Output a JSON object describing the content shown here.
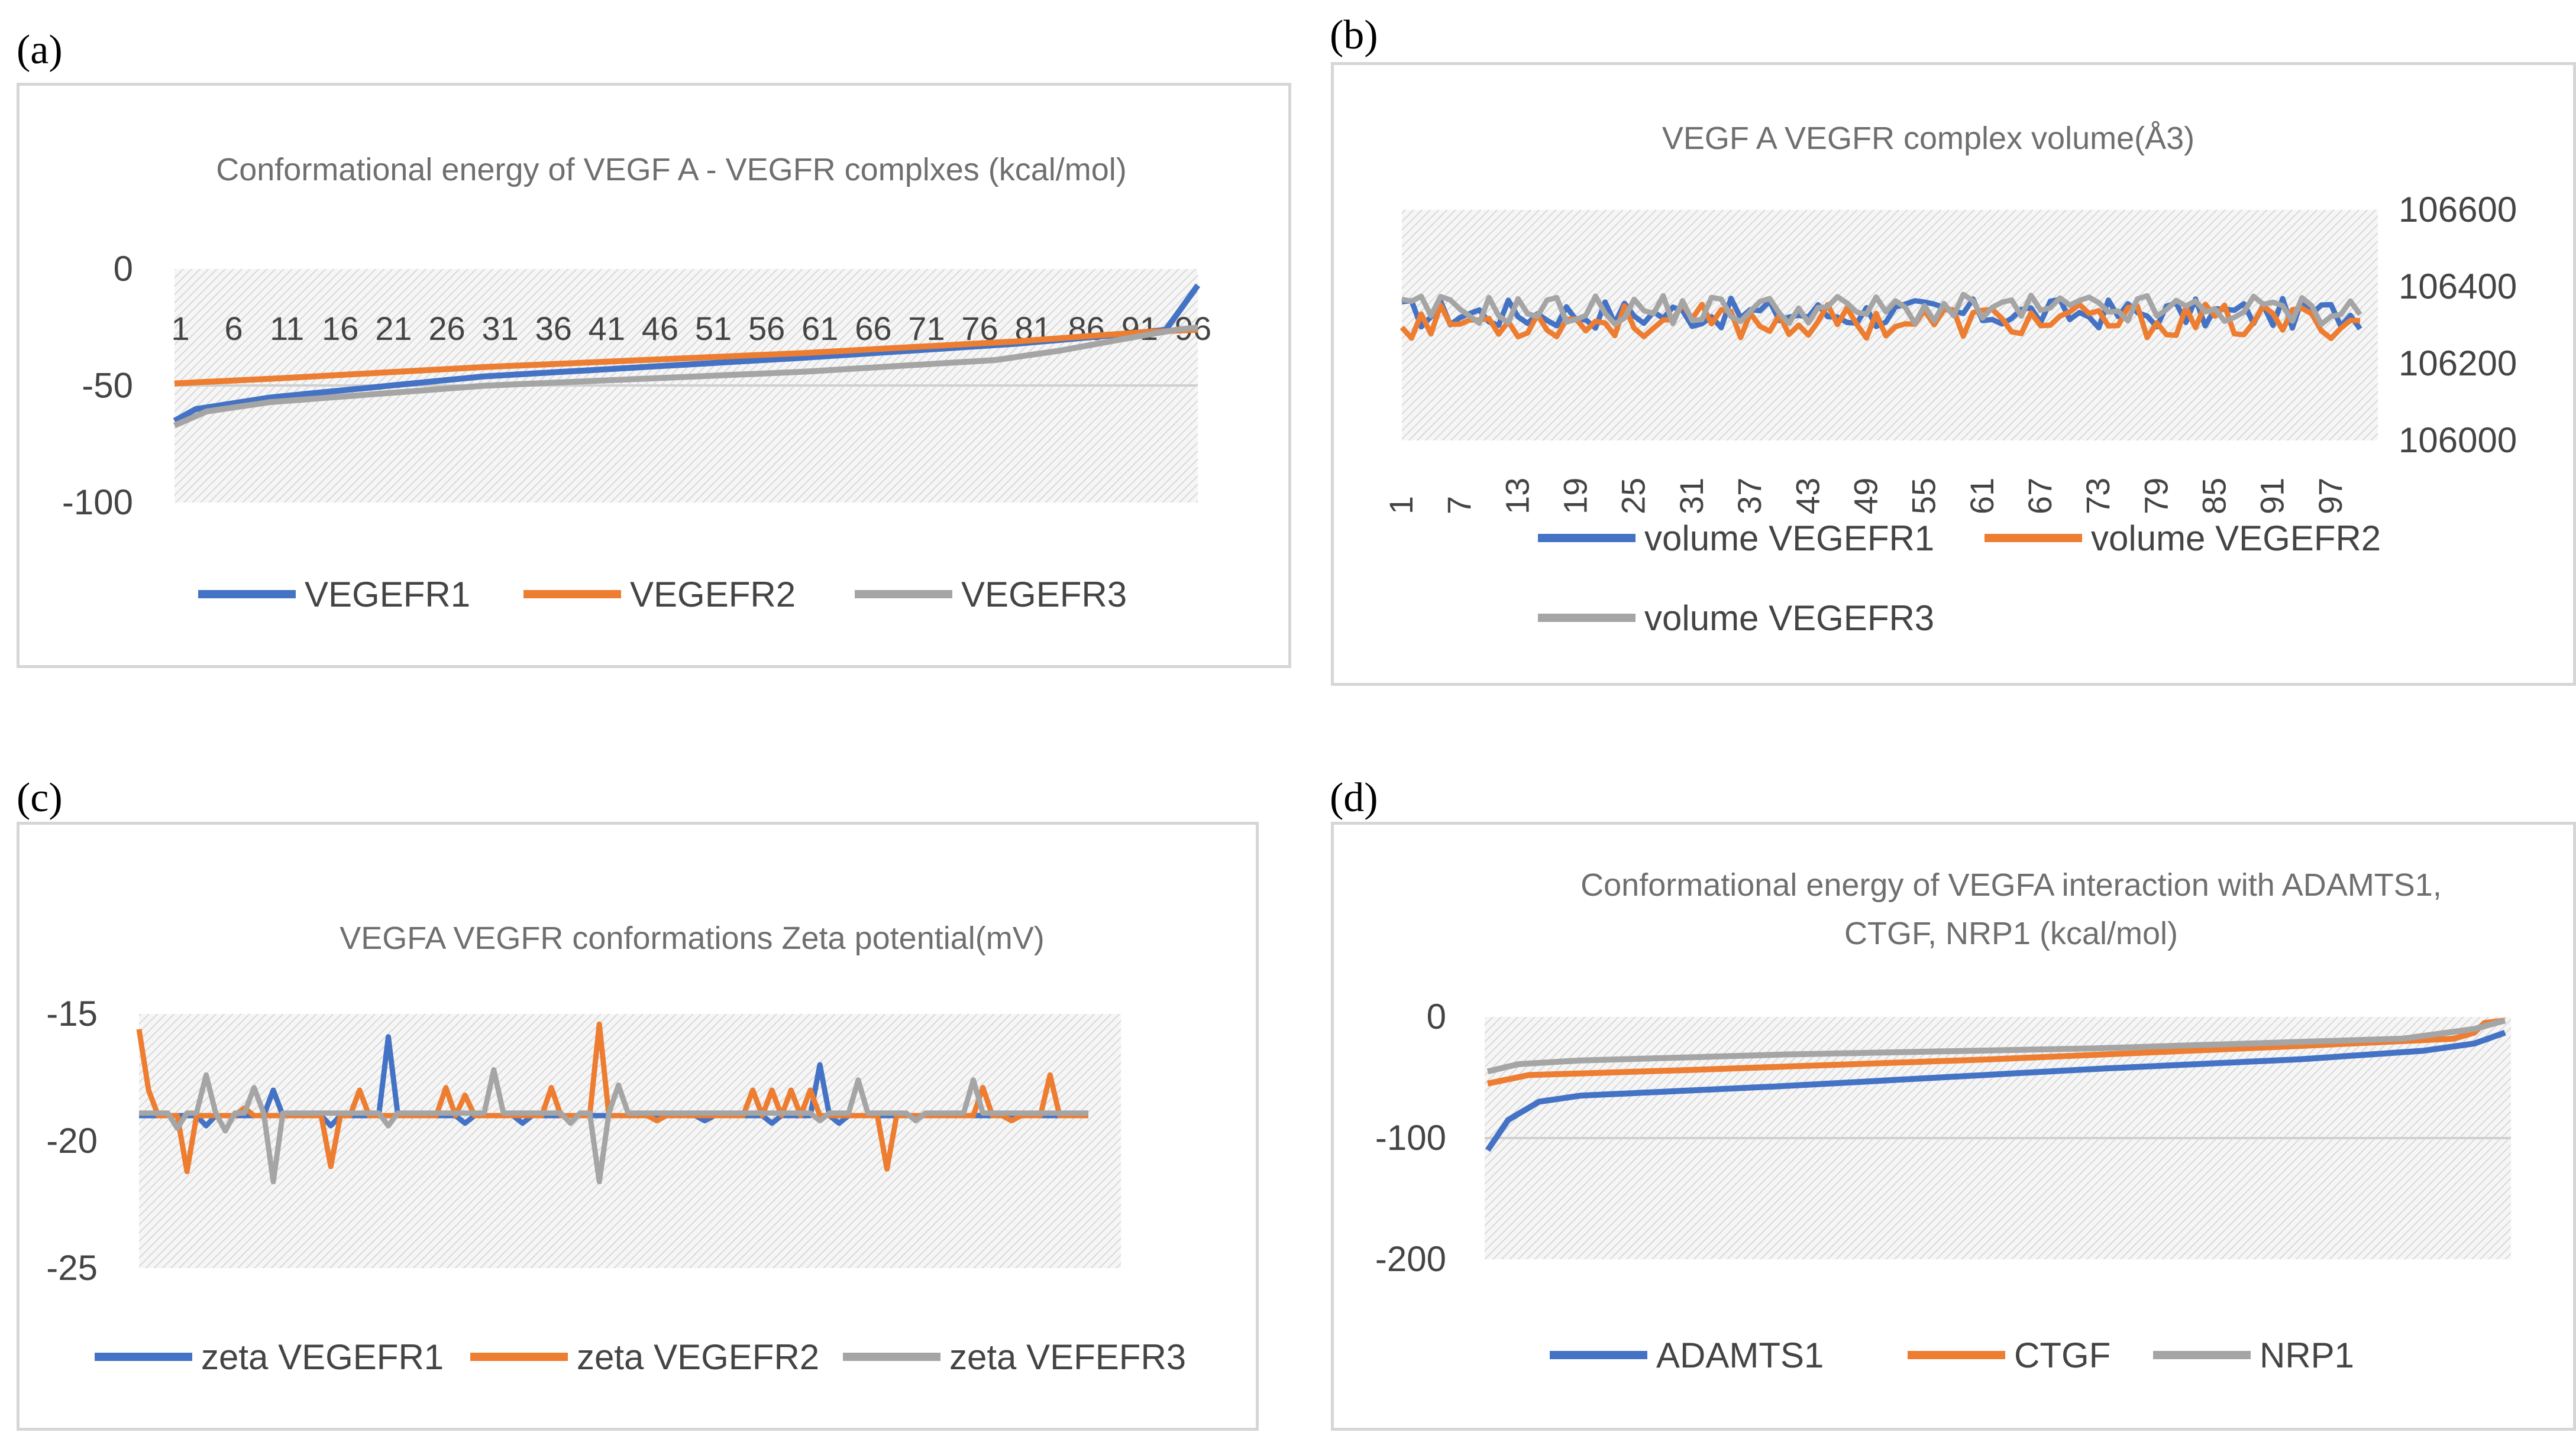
{
  "panel_labels": [
    "(a)",
    "(b)",
    "(c)",
    "(d)"
  ],
  "chart_data": [
    {
      "id": "a",
      "type": "line",
      "title": "Conformational energy of VEGF A - VEGFR complxes (kcal/mol)",
      "xlabel": "",
      "ylabel": "",
      "ylim": [
        -100,
        0
      ],
      "yticks": [
        0,
        -50,
        -100
      ],
      "xtick_labels": [
        "1",
        "6",
        "11",
        "16",
        "21",
        "26",
        "31",
        "36",
        "41",
        "46",
        "51",
        "56",
        "61",
        "66",
        "71",
        "76",
        "81",
        "86",
        "91",
        "96"
      ],
      "xtick_positions": "top",
      "n_points": 97,
      "series": [
        {
          "name": "VEGEFR1",
          "color": "#4472c4",
          "anchors": [
            [
              1,
              -65
            ],
            [
              3,
              -60
            ],
            [
              10,
              -55
            ],
            [
              30,
              -46
            ],
            [
              60,
              -38
            ],
            [
              80,
              -32
            ],
            [
              90,
              -28
            ],
            [
              94,
              -26
            ],
            [
              97,
              -7
            ]
          ]
        },
        {
          "name": "VEGEFR2",
          "color": "#ed7d31",
          "anchors": [
            [
              1,
              -49
            ],
            [
              10,
              -47
            ],
            [
              30,
              -42
            ],
            [
              60,
              -36
            ],
            [
              80,
              -31
            ],
            [
              92,
              -27
            ],
            [
              97,
              -26
            ]
          ]
        },
        {
          "name": "VEGEFR3",
          "color": "#a5a5a5",
          "anchors": [
            [
              1,
              -67
            ],
            [
              4,
              -61
            ],
            [
              10,
              -57
            ],
            [
              30,
              -50
            ],
            [
              60,
              -44
            ],
            [
              78,
              -39
            ],
            [
              84,
              -35
            ],
            [
              90,
              -30
            ],
            [
              95,
              -26
            ],
            [
              97,
              -25
            ]
          ]
        }
      ],
      "legend": [
        "VEGEFR1",
        "VEGEFR2",
        "VEGEFR3"
      ]
    },
    {
      "id": "b",
      "type": "line",
      "title": "VEGF A VEGFR complex volume(Å3)",
      "ylim": [
        106000,
        106600
      ],
      "yticks": [
        106600,
        106400,
        106200,
        106000
      ],
      "y_axis_side": "right",
      "xtick_labels": [
        "1",
        "7",
        "13",
        "19",
        "25",
        "31",
        "37",
        "43",
        "49",
        "55",
        "61",
        "67",
        "73",
        "79",
        "85",
        "91",
        "97"
      ],
      "n_points": 100,
      "series": [
        {
          "name": "volume VEGEFR1",
          "color": "#4472c4",
          "center": 106330,
          "amp": 40
        },
        {
          "name": "volume VEGEFR2",
          "color": "#ed7d31",
          "center": 106310,
          "amp": 45
        },
        {
          "name": "volume VEGEFR3",
          "color": "#a5a5a5",
          "center": 106340,
          "amp": 40
        }
      ],
      "legend": [
        "volume VEGEFR1",
        "volume VEGEFR2",
        "volume VEGEFR3"
      ]
    },
    {
      "id": "c",
      "type": "line",
      "title": "VEGFA VEGFR  conformations Zeta potential(mV)",
      "ylim": [
        -25,
        -15
      ],
      "yticks": [
        -15,
        -20,
        -25
      ],
      "n_points": 100,
      "series": [
        {
          "name": "zeta VEGEFR1",
          "color": "#4472c4",
          "base": -19,
          "spikes": [
            [
              8,
              -19.4
            ],
            [
              15,
              -18
            ],
            [
              21,
              -19.4
            ],
            [
              27,
              -15.9
            ],
            [
              29,
              -18.9
            ],
            [
              35,
              -19.3
            ],
            [
              41,
              -19.3
            ],
            [
              60,
              -19.2
            ],
            [
              67,
              -19.3
            ],
            [
              72,
              -17
            ],
            [
              74,
              -19.3
            ]
          ]
        },
        {
          "name": "zeta VEGEFR2",
          "color": "#ed7d31",
          "base": -19,
          "spikes": [
            [
              1,
              -15.6
            ],
            [
              2,
              -18
            ],
            [
              6,
              -21.2
            ],
            [
              12,
              -18.7
            ],
            [
              21,
              -21
            ],
            [
              24,
              -18
            ],
            [
              33,
              -17.9
            ],
            [
              35,
              -18.2
            ],
            [
              44,
              -17.9
            ],
            [
              49,
              -15.4
            ],
            [
              55,
              -19.2
            ],
            [
              65,
              -18
            ],
            [
              67,
              -18
            ],
            [
              69,
              -18
            ],
            [
              71,
              -18
            ],
            [
              79,
              -21.1
            ],
            [
              89,
              -17.9
            ],
            [
              92,
              -19.2
            ],
            [
              96,
              -17.4
            ]
          ]
        },
        {
          "name": "zeta VEFEFR3",
          "color": "#a5a5a5",
          "base": -18.9,
          "spikes": [
            [
              5,
              -19.5
            ],
            [
              8,
              -17.4
            ],
            [
              10,
              -19.6
            ],
            [
              13,
              -17.9
            ],
            [
              15,
              -21.6
            ],
            [
              27,
              -19.4
            ],
            [
              38,
              -17.2
            ],
            [
              46,
              -19.3
            ],
            [
              49,
              -21.6
            ],
            [
              51,
              -17.8
            ],
            [
              72,
              -19.2
            ],
            [
              76,
              -17.6
            ],
            [
              82,
              -19.2
            ],
            [
              88,
              -17.6
            ]
          ]
        }
      ],
      "legend": [
        "zeta VEGEFR1",
        "zeta VEGEFR2",
        "zeta VEFEFR3"
      ]
    },
    {
      "id": "d",
      "type": "line",
      "title": "Conformational energy of VEGFA interaction with  ADAMTS1,",
      "title_line2": "CTGF, NRP1 (kcal/mol)",
      "ylim": [
        -200,
        0
      ],
      "yticks": [
        0,
        -100,
        -200
      ],
      "n_points": 100,
      "series": [
        {
          "name": "ADAMTS1",
          "color": "#4472c4",
          "anchors": [
            [
              1,
              -110
            ],
            [
              3,
              -85
            ],
            [
              6,
              -70
            ],
            [
              10,
              -65
            ],
            [
              30,
              -57
            ],
            [
              60,
              -43
            ],
            [
              80,
              -35
            ],
            [
              92,
              -28
            ],
            [
              97,
              -22
            ],
            [
              100,
              -13
            ]
          ]
        },
        {
          "name": "CTGF",
          "color": "#ed7d31",
          "anchors": [
            [
              1,
              -55
            ],
            [
              5,
              -48
            ],
            [
              20,
              -44
            ],
            [
              50,
              -35
            ],
            [
              80,
              -24
            ],
            [
              95,
              -18
            ],
            [
              97,
              -13
            ],
            [
              98,
              -5
            ],
            [
              100,
              -3
            ]
          ]
        },
        {
          "name": "NRP1",
          "color": "#a5a5a5",
          "anchors": [
            [
              1,
              -45
            ],
            [
              4,
              -39
            ],
            [
              10,
              -36
            ],
            [
              30,
              -31
            ],
            [
              60,
              -26
            ],
            [
              90,
              -18
            ],
            [
              97,
              -10
            ],
            [
              100,
              -3
            ]
          ]
        }
      ],
      "legend": [
        "ADAMTS1",
        "CTGF",
        "NRP1"
      ]
    }
  ]
}
